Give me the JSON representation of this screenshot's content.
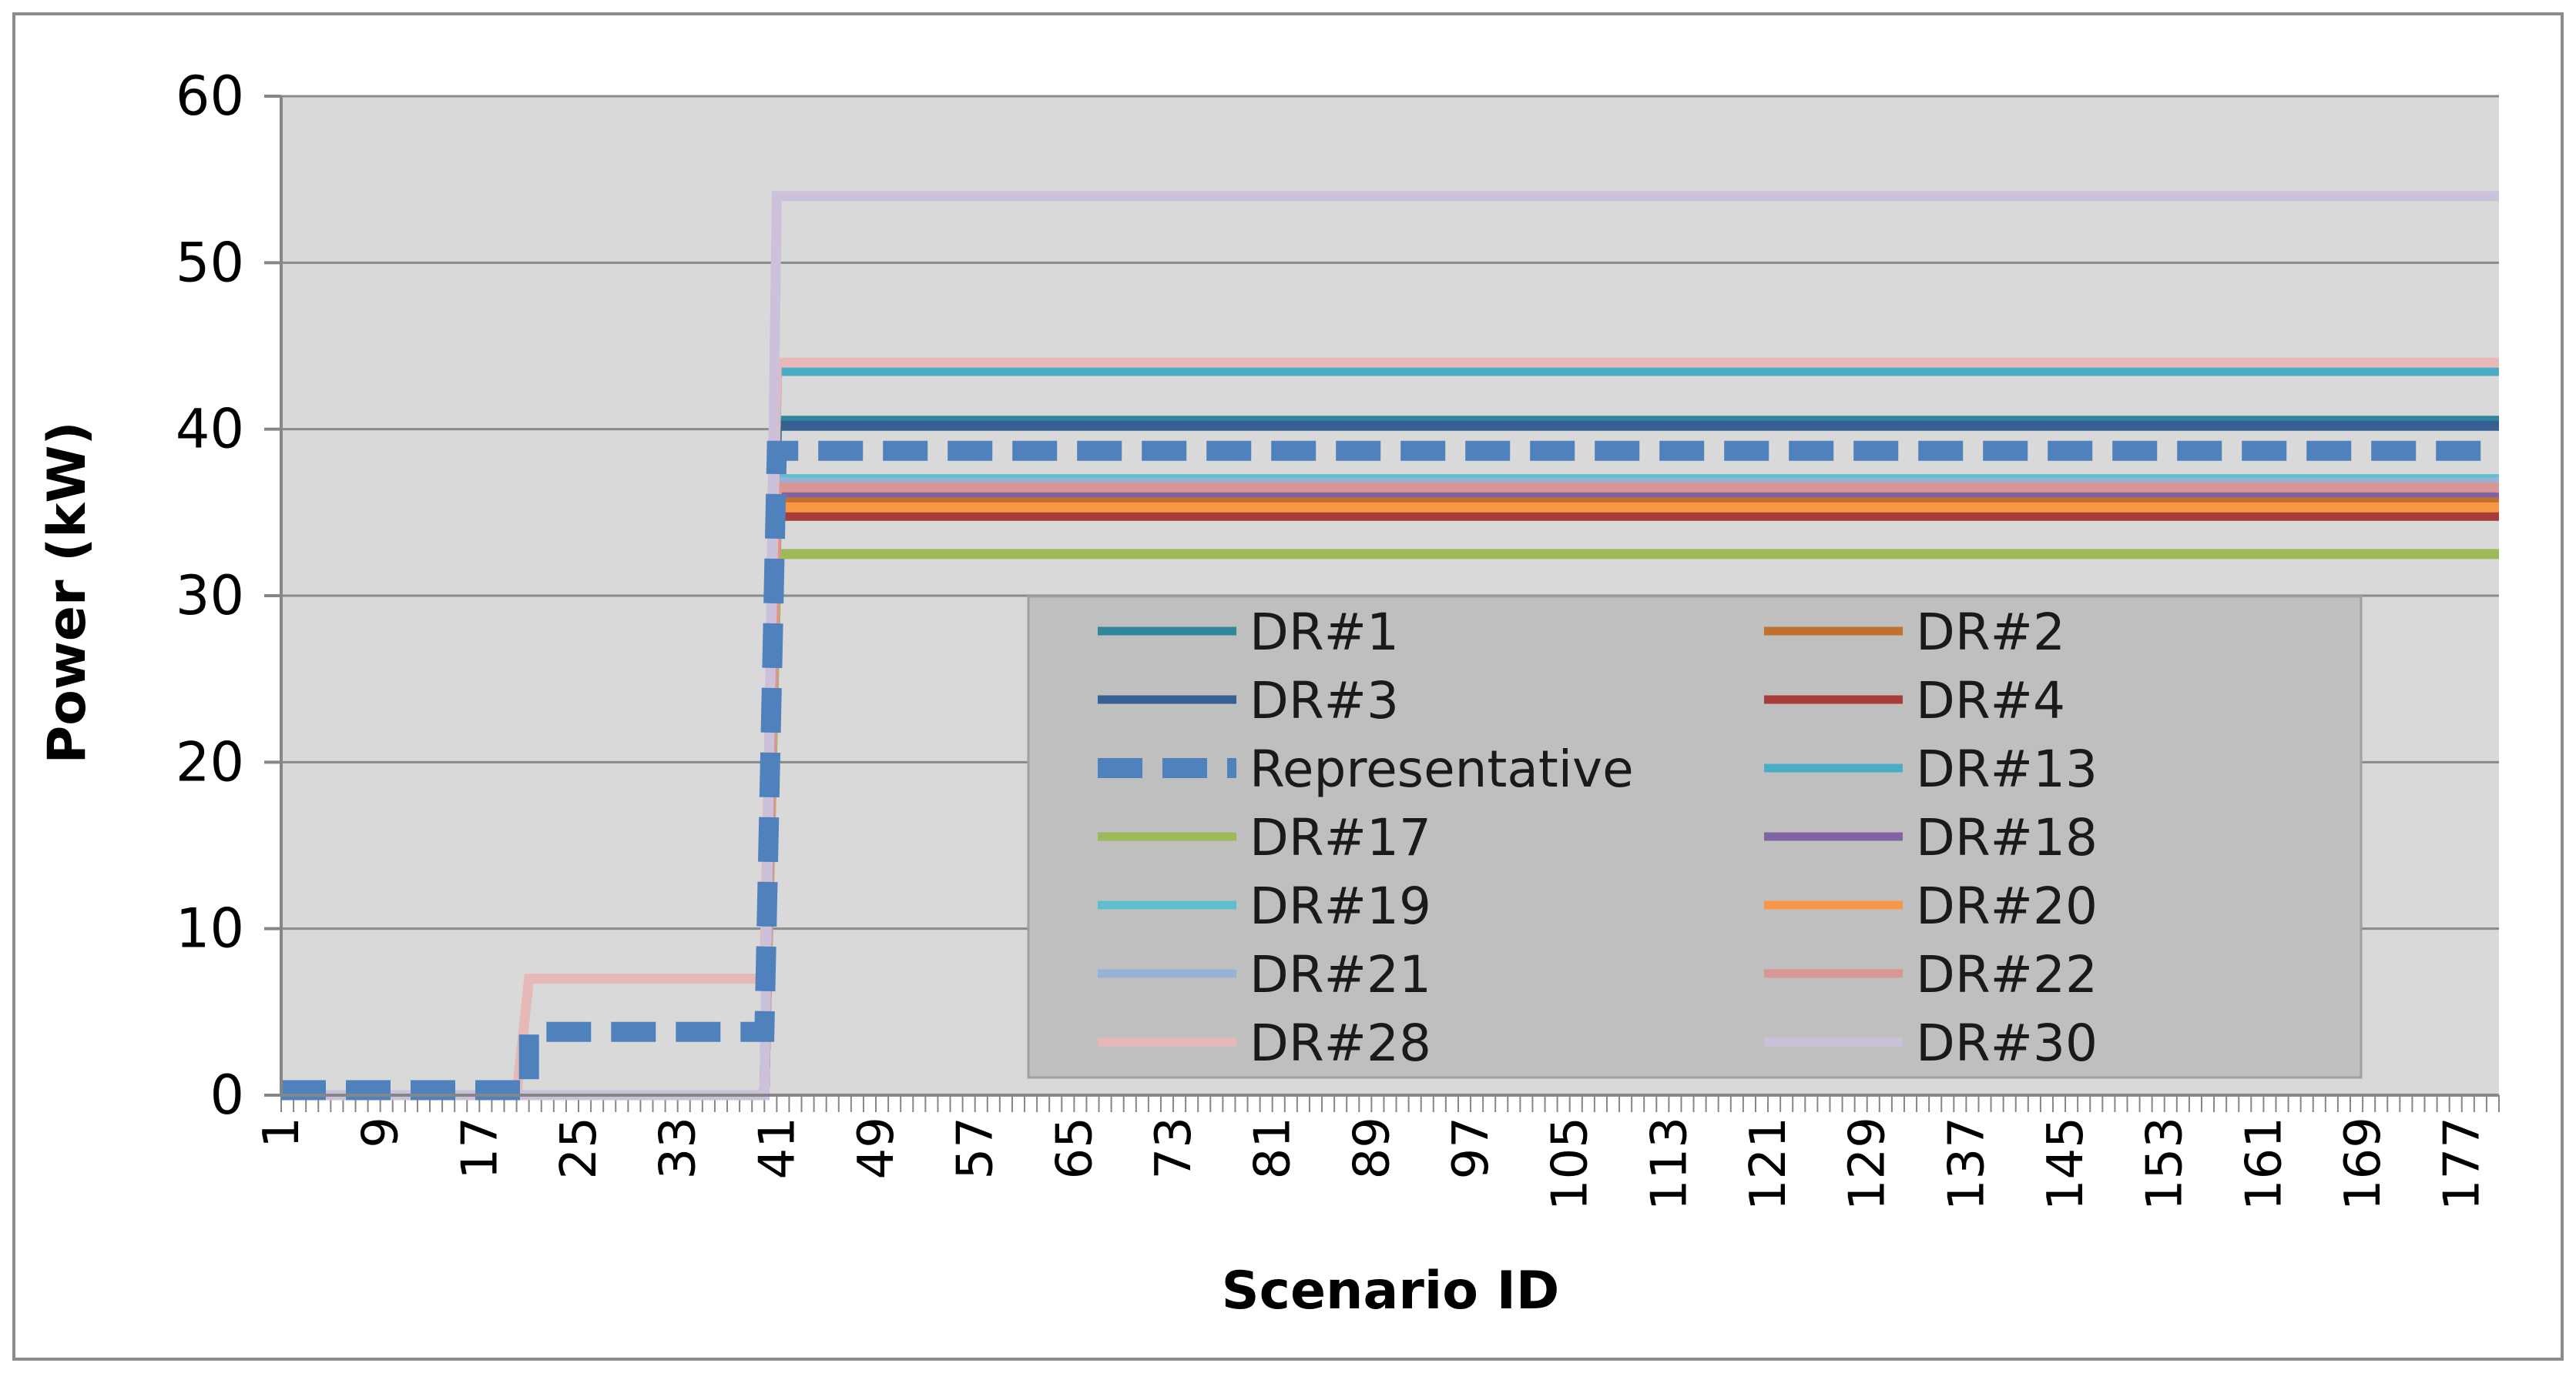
{
  "chart_data": {
    "type": "line",
    "title": "",
    "xlabel": "Scenario ID",
    "ylabel": "Power (kW)",
    "ylim": [
      0,
      60
    ],
    "xlim": [
      1,
      180
    ],
    "yticks": [
      "0",
      "10",
      "20",
      "30",
      "40",
      "50",
      "60"
    ],
    "xticks": [
      "1",
      "9",
      "17",
      "25",
      "33",
      "41",
      "49",
      "57",
      "65",
      "73",
      "81",
      "89",
      "97",
      "105",
      "113",
      "121",
      "129",
      "137",
      "145",
      "153",
      "161",
      "169",
      "177"
    ],
    "grid": "horizontal",
    "legend_position": "inside lower-right",
    "series": [
      {
        "name": "DR#1",
        "color": "#31859C",
        "dash": false,
        "points": [
          [
            1,
            0
          ],
          [
            21,
            0
          ],
          [
            21,
            0
          ],
          [
            40,
            0
          ],
          [
            41,
            40.5
          ],
          [
            180,
            40.5
          ]
        ]
      },
      {
        "name": "DR#2",
        "color": "#C0702F",
        "dash": false,
        "points": [
          [
            1,
            0
          ],
          [
            21,
            0
          ],
          [
            21,
            0
          ],
          [
            40,
            0
          ],
          [
            41,
            35.8
          ],
          [
            180,
            35.8
          ]
        ]
      },
      {
        "name": "DR#3",
        "color": "#376092",
        "dash": false,
        "points": [
          [
            1,
            0
          ],
          [
            21,
            0
          ],
          [
            21,
            0
          ],
          [
            40,
            0
          ],
          [
            41,
            40.2
          ],
          [
            180,
            40.2
          ]
        ]
      },
      {
        "name": "DR#4",
        "color": "#A83C3A",
        "dash": false,
        "points": [
          [
            1,
            0
          ],
          [
            21,
            0
          ],
          [
            21,
            0
          ],
          [
            40,
            0
          ],
          [
            41,
            34.8
          ],
          [
            180,
            34.8
          ]
        ]
      },
      {
        "name": "Representative",
        "color": "#4F81BD",
        "dash": true,
        "points": [
          [
            1,
            0.3
          ],
          [
            21,
            0.3
          ],
          [
            21,
            3.8
          ],
          [
            40,
            3.8
          ],
          [
            41,
            38.7
          ],
          [
            180,
            38.7
          ]
        ]
      },
      {
        "name": "DR#13",
        "color": "#4BACC6",
        "dash": false,
        "points": [
          [
            1,
            0
          ],
          [
            21,
            0
          ],
          [
            21,
            0
          ],
          [
            40,
            0
          ],
          [
            41,
            43.5
          ],
          [
            180,
            43.5
          ]
        ]
      },
      {
        "name": "DR#17",
        "color": "#9BBB59",
        "dash": false,
        "points": [
          [
            1,
            0
          ],
          [
            21,
            0
          ],
          [
            21,
            0
          ],
          [
            40,
            0
          ],
          [
            41,
            32.5
          ],
          [
            180,
            32.5
          ]
        ]
      },
      {
        "name": "DR#18",
        "color": "#8064A2",
        "dash": false,
        "points": [
          [
            1,
            0
          ],
          [
            21,
            0
          ],
          [
            21,
            0
          ],
          [
            40,
            0
          ],
          [
            41,
            36.2
          ],
          [
            180,
            36.2
          ]
        ]
      },
      {
        "name": "DR#19",
        "color": "#5FBECE",
        "dash": false,
        "points": [
          [
            1,
            0
          ],
          [
            21,
            0
          ],
          [
            21,
            0
          ],
          [
            40,
            0
          ],
          [
            41,
            37.0
          ],
          [
            180,
            37.0
          ]
        ]
      },
      {
        "name": "DR#20",
        "color": "#F79646",
        "dash": false,
        "points": [
          [
            1,
            0
          ],
          [
            21,
            0
          ],
          [
            21,
            0
          ],
          [
            40,
            0
          ],
          [
            41,
            35.3
          ],
          [
            180,
            35.3
          ]
        ]
      },
      {
        "name": "DR#21",
        "color": "#95B3D7",
        "dash": false,
        "points": [
          [
            1,
            0
          ],
          [
            21,
            0
          ],
          [
            21,
            0
          ],
          [
            40,
            0
          ],
          [
            41,
            36.8
          ],
          [
            180,
            36.8
          ]
        ]
      },
      {
        "name": "DR#22",
        "color": "#D99694",
        "dash": false,
        "points": [
          [
            1,
            0
          ],
          [
            21,
            0
          ],
          [
            21,
            0
          ],
          [
            40,
            0
          ],
          [
            41,
            36.5
          ],
          [
            180,
            36.5
          ]
        ]
      },
      {
        "name": "DR#28",
        "color": "#E6B9B8",
        "dash": false,
        "points": [
          [
            1,
            0
          ],
          [
            20,
            0
          ],
          [
            21,
            7
          ],
          [
            40,
            7
          ],
          [
            41,
            44
          ],
          [
            180,
            44
          ]
        ]
      },
      {
        "name": "DR#30",
        "color": "#CCC1DA",
        "dash": false,
        "points": [
          [
            1,
            0
          ],
          [
            20,
            0
          ],
          [
            20,
            0
          ],
          [
            40,
            0
          ],
          [
            41,
            54
          ],
          [
            180,
            54
          ]
        ]
      }
    ]
  }
}
